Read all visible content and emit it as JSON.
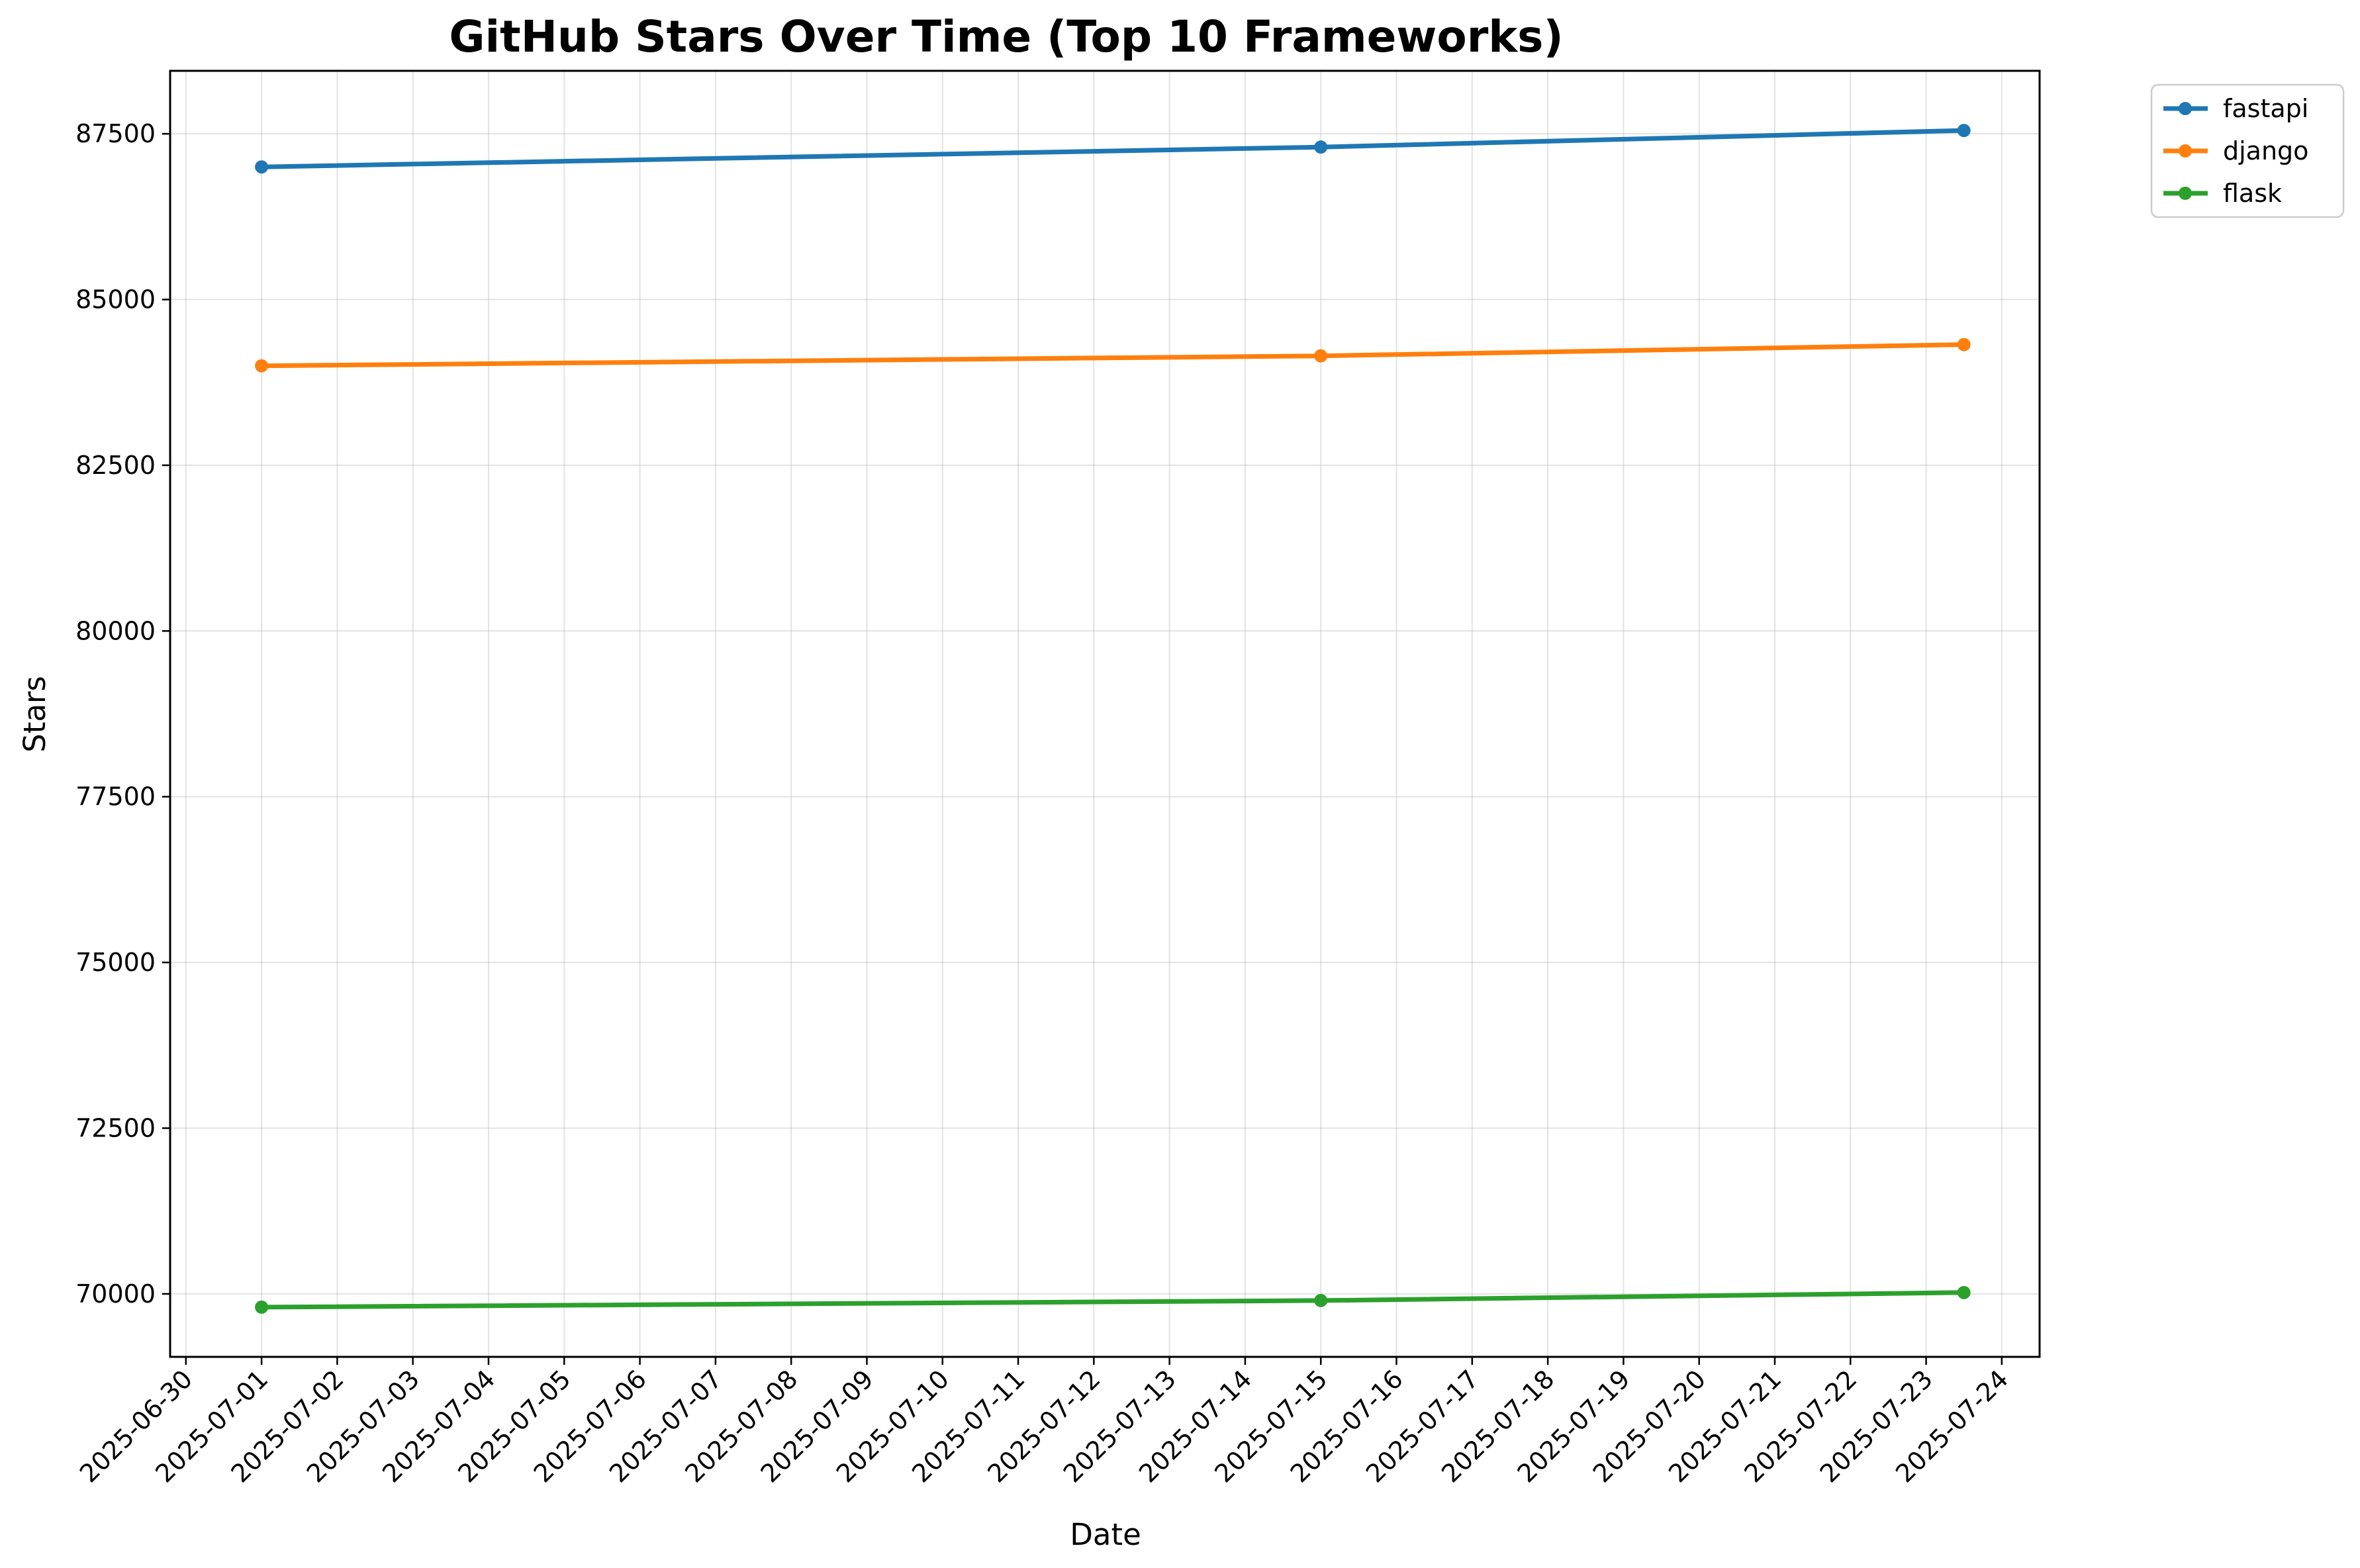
{
  "chart_data": {
    "type": "line",
    "title": "GitHub Stars Over Time (Top 10 Frameworks)",
    "xlabel": "Date",
    "ylabel": "Stars",
    "x_ticks": [
      "2025-06-30",
      "2025-07-01",
      "2025-07-02",
      "2025-07-03",
      "2025-07-04",
      "2025-07-05",
      "2025-07-06",
      "2025-07-07",
      "2025-07-08",
      "2025-07-09",
      "2025-07-10",
      "2025-07-11",
      "2025-07-12",
      "2025-07-13",
      "2025-07-14",
      "2025-07-15",
      "2025-07-16",
      "2025-07-17",
      "2025-07-18",
      "2025-07-19",
      "2025-07-20",
      "2025-07-21",
      "2025-07-22",
      "2025-07-23",
      "2025-07-24"
    ],
    "y_ticks": [
      "70000",
      "72500",
      "75000",
      "77500",
      "80000",
      "82500",
      "85000",
      "87500"
    ],
    "x_range": [
      "2025-06-29T19:00",
      "2025-07-24T12:00"
    ],
    "ylim": [
      69050,
      88450
    ],
    "grid": true,
    "legend_position": "outside-top-right",
    "series": [
      {
        "name": "fastapi",
        "color": "#1f77b4",
        "x": [
          "2025-07-01",
          "2025-07-15",
          "2025-07-23T12:00"
        ],
        "y": [
          87000,
          87300,
          87550
        ]
      },
      {
        "name": "django",
        "color": "#ff7f0e",
        "x": [
          "2025-07-01",
          "2025-07-15",
          "2025-07-23T12:00"
        ],
        "y": [
          84000,
          84150,
          84320
        ]
      },
      {
        "name": "flask",
        "color": "#2ca02c",
        "x": [
          "2025-07-01",
          "2025-07-15",
          "2025-07-23T12:00"
        ],
        "y": [
          69800,
          69900,
          70020
        ]
      }
    ]
  }
}
